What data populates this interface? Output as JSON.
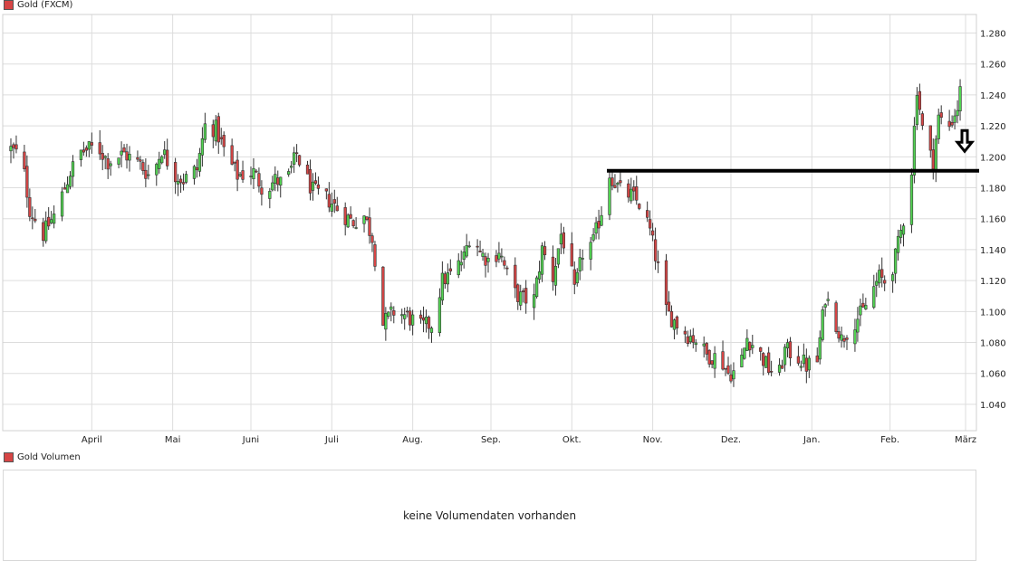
{
  "header": {
    "legend_label": "Gold (FXCM)"
  },
  "volume": {
    "legend_label": "Gold Volumen",
    "message": "keine Volumendaten vorhanden"
  },
  "colors": {
    "up": "#52d452",
    "down": "#d64545",
    "grid": "#dddddd",
    "wick": "#333333",
    "line": "#000000",
    "swatch": "#d64545"
  },
  "chart_data": {
    "type": "candlestick",
    "y_ticks": [
      "1.040",
      "1.060",
      "1.080",
      "1.100",
      "1.120",
      "1.140",
      "1.160",
      "1.180",
      "1.200",
      "1.220",
      "1.240",
      "1.260",
      "1.280"
    ],
    "ylim": [
      1.023,
      1.292
    ],
    "xlim": [
      0,
      354
    ],
    "x_ticks": [
      {
        "label": "April",
        "day": 30
      },
      {
        "label": "Mai",
        "day": 60
      },
      {
        "label": "Juni",
        "day": 89
      },
      {
        "label": "Juli",
        "day": 119
      },
      {
        "label": "Aug.",
        "day": 149
      },
      {
        "label": "Sep.",
        "day": 178
      },
      {
        "label": "Okt.",
        "day": 208
      },
      {
        "label": "Nov.",
        "day": 238
      },
      {
        "label": "Dez.",
        "day": 267
      },
      {
        "label": "Jan.",
        "day": 297
      },
      {
        "label": "Feb.",
        "day": 326
      },
      {
        "label": "März",
        "day": 354
      }
    ],
    "resistance_level": 1.191,
    "resistance_start_day": 221,
    "arrow": {
      "day": 354,
      "value": 1.197,
      "direction": "down"
    },
    "anchors": [
      [
        0,
        1.205
      ],
      [
        4,
        1.2
      ],
      [
        7,
        1.166
      ],
      [
        12,
        1.15
      ],
      [
        17,
        1.165
      ],
      [
        22,
        1.19
      ],
      [
        26,
        1.203
      ],
      [
        32,
        1.207
      ],
      [
        36,
        1.197
      ],
      [
        42,
        1.202
      ],
      [
        48,
        1.195
      ],
      [
        52,
        1.186
      ],
      [
        56,
        1.205
      ],
      [
        60,
        1.19
      ],
      [
        64,
        1.185
      ],
      [
        69,
        1.192
      ],
      [
        72,
        1.22
      ],
      [
        76,
        1.218
      ],
      [
        80,
        1.2
      ],
      [
        84,
        1.188
      ],
      [
        90,
        1.19
      ],
      [
        94,
        1.178
      ],
      [
        98,
        1.185
      ],
      [
        102,
        1.182
      ],
      [
        106,
        1.202
      ],
      [
        109,
        1.188
      ],
      [
        112,
        1.178
      ],
      [
        118,
        1.172
      ],
      [
        123,
        1.163
      ],
      [
        127,
        1.158
      ],
      [
        131,
        1.162
      ],
      [
        134,
        1.148
      ],
      [
        136,
        1.122
      ],
      [
        138,
        1.092
      ],
      [
        142,
        1.1
      ],
      [
        147,
        1.097
      ],
      [
        152,
        1.09
      ],
      [
        156,
        1.092
      ],
      [
        160,
        1.12
      ],
      [
        164,
        1.125
      ],
      [
        168,
        1.135
      ],
      [
        171,
        1.155
      ],
      [
        174,
        1.138
      ],
      [
        178,
        1.132
      ],
      [
        181,
        1.14
      ],
      [
        186,
        1.113
      ],
      [
        190,
        1.108
      ],
      [
        194,
        1.108
      ],
      [
        197,
        1.14
      ],
      [
        201,
        1.122
      ],
      [
        204,
        1.15
      ],
      [
        207,
        1.135
      ],
      [
        209,
        1.112
      ],
      [
        212,
        1.138
      ],
      [
        216,
        1.145
      ],
      [
        219,
        1.165
      ],
      [
        222,
        1.189
      ],
      [
        226,
        1.178
      ],
      [
        230,
        1.175
      ],
      [
        234,
        1.168
      ],
      [
        237,
        1.152
      ],
      [
        240,
        1.128
      ],
      [
        243,
        1.1
      ],
      [
        247,
        1.092
      ],
      [
        251,
        1.085
      ],
      [
        254,
        1.082
      ],
      [
        258,
        1.072
      ],
      [
        263,
        1.07
      ],
      [
        266,
        1.06
      ],
      [
        270,
        1.062
      ],
      [
        273,
        1.083
      ],
      [
        277,
        1.075
      ],
      [
        281,
        1.063
      ],
      [
        285,
        1.06
      ],
      [
        287,
        1.075
      ],
      [
        291,
        1.072
      ],
      [
        295,
        1.065
      ],
      [
        299,
        1.068
      ],
      [
        302,
        1.11
      ],
      [
        305,
        1.098
      ],
      [
        308,
        1.082
      ],
      [
        312,
        1.092
      ],
      [
        316,
        1.1
      ],
      [
        319,
        1.112
      ],
      [
        322,
        1.122
      ],
      [
        325,
        1.118
      ],
      [
        328,
        1.135
      ],
      [
        331,
        1.16
      ],
      [
        334,
        1.192
      ],
      [
        336,
        1.245
      ],
      [
        339,
        1.205
      ],
      [
        342,
        1.198
      ],
      [
        344,
        1.225
      ],
      [
        348,
        1.22
      ],
      [
        351,
        1.232
      ],
      [
        354,
        1.262
      ]
    ]
  }
}
